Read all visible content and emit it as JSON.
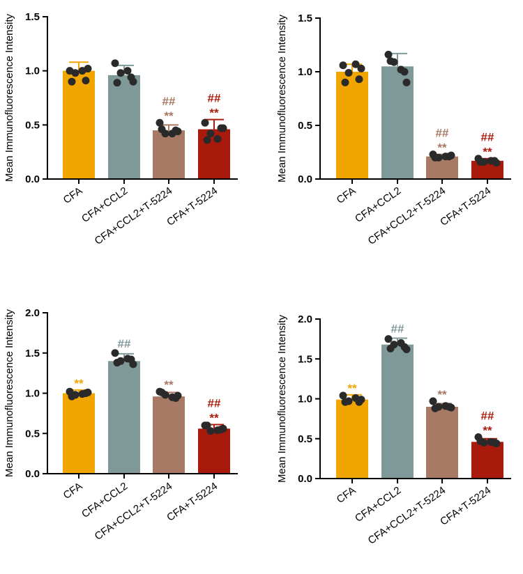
{
  "figure_ylabel": "Mean Immunofluorescence Intensity",
  "categories": [
    "CFA",
    "CFA+CCL2",
    "CFA+CCL2+T-5224",
    "CFA+T-5224"
  ],
  "colors": [
    "#F0A500",
    "#7F9998",
    "#A87964",
    "#A81A0C"
  ],
  "chart_data": [
    {
      "type": "bar",
      "title": "",
      "xlabel": "",
      "ylabel": "Mean Immunofluorescence Intensity",
      "ylim": [
        0,
        1.5
      ],
      "yticks": [
        "0.0",
        "0.5",
        "1.0",
        "1.5"
      ],
      "categories": [
        "CFA",
        "CFA+CCL2",
        "CFA+CCL2+T-5224",
        "CFA+T-5224"
      ],
      "values": [
        1.0,
        0.96,
        0.45,
        0.46
      ],
      "errors": [
        0.08,
        0.09,
        0.05,
        0.09
      ],
      "points": [
        [
          1.0,
          0.98,
          1.0,
          1.02,
          0.9,
          0.91
        ],
        [
          1.07,
          0.98,
          1.0,
          0.9,
          0.89,
          0.94
        ],
        [
          0.52,
          0.42,
          0.42,
          0.44,
          0.46,
          0.45
        ],
        [
          0.52,
          0.42,
          0.37,
          0.47,
          0.36,
          0.47
        ]
      ],
      "annotations": [
        [
          "",
          ""
        ],
        [
          "",
          ""
        ],
        [
          "##",
          "**"
        ],
        [
          "##",
          "**"
        ]
      ]
    },
    {
      "type": "bar",
      "title": "",
      "xlabel": "",
      "ylabel": "Mean Immunofluorescence Intensity",
      "ylim": [
        0,
        1.5
      ],
      "yticks": [
        "0.0",
        "0.5",
        "1.0",
        "1.5"
      ],
      "categories": [
        "CFA",
        "CFA+CCL2",
        "CFA+CCL2+T-5224",
        "CFA+T-5224"
      ],
      "values": [
        1.0,
        1.05,
        0.21,
        0.17
      ],
      "errors": [
        0.07,
        0.12,
        0.02,
        0.02
      ],
      "points": [
        [
          1.06,
          0.99,
          1.07,
          1.03,
          0.9,
          0.93
        ],
        [
          1.16,
          1.09,
          1.02,
          0.9,
          1.1,
          1.0
        ],
        [
          0.23,
          0.2,
          0.21,
          0.22,
          0.2,
          0.21
        ],
        [
          0.19,
          0.16,
          0.17,
          0.15,
          0.16,
          0.17
        ]
      ],
      "annotations": [
        [
          "",
          ""
        ],
        [
          "",
          ""
        ],
        [
          "##",
          "**"
        ],
        [
          "##",
          "**"
        ]
      ]
    },
    {
      "type": "bar",
      "title": "",
      "xlabel": "",
      "ylabel": "Mean Immunofluorescence Intensity",
      "ylim": [
        0,
        2.0
      ],
      "yticks": [
        "0.0",
        "0.5",
        "1.0",
        "1.5",
        "2.0"
      ],
      "categories": [
        "CFA",
        "CFA+CCL2",
        "CFA+CCL2+T-5224",
        "CFA+T-5224"
      ],
      "values": [
        1.0,
        1.4,
        0.96,
        0.56
      ],
      "errors": [
        0.04,
        0.09,
        0.05,
        0.05
      ],
      "points": [
        [
          1.02,
          0.98,
          0.99,
          1.01,
          0.96,
          1.0
        ],
        [
          1.5,
          1.4,
          1.43,
          1.36,
          1.38,
          1.42
        ],
        [
          1.02,
          0.98,
          0.95,
          0.97,
          1.01,
          0.94
        ],
        [
          0.6,
          0.53,
          0.54,
          0.56,
          0.6,
          0.55
        ]
      ],
      "annotations": [
        [
          "",
          "**"
        ],
        [
          "##",
          ""
        ],
        [
          "",
          "**"
        ],
        [
          "##",
          "**"
        ]
      ]
    },
    {
      "type": "bar",
      "title": "",
      "xlabel": "",
      "ylabel": "Mean Immunofluorescence Intensity",
      "ylim": [
        0,
        2.0
      ],
      "yticks": [
        "0.0",
        "0.5",
        "1.0",
        "1.5",
        "2.0"
      ],
      "categories": [
        "CFA",
        "CFA+CCL2",
        "CFA+CCL2+T-5224",
        "CFA+T-5224"
      ],
      "values": [
        0.99,
        1.68,
        0.9,
        0.46
      ],
      "errors": [
        0.06,
        0.08,
        0.04,
        0.04
      ],
      "points": [
        [
          1.04,
          0.97,
          1.01,
          0.99,
          0.96,
          0.96
        ],
        [
          1.75,
          1.68,
          1.7,
          1.62,
          1.63,
          1.65
        ],
        [
          0.97,
          0.9,
          0.91,
          0.89,
          0.88,
          0.9
        ],
        [
          0.52,
          0.45,
          0.46,
          0.44,
          0.47,
          0.45
        ]
      ],
      "annotations": [
        [
          "",
          "**"
        ],
        [
          "##",
          ""
        ],
        [
          "",
          "**"
        ],
        [
          "##",
          "**"
        ]
      ]
    }
  ]
}
